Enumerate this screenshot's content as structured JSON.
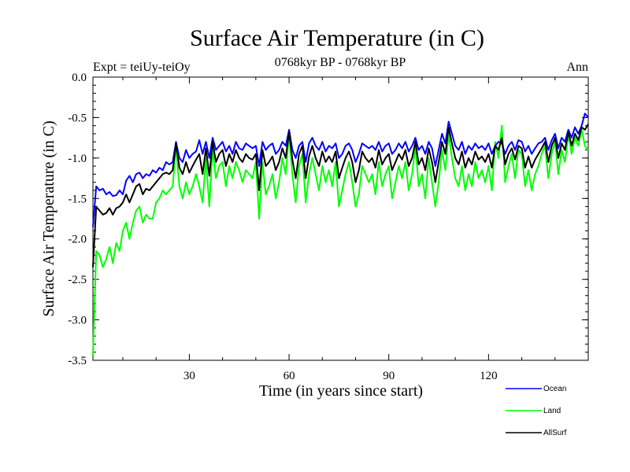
{
  "chart_data": {
    "type": "line",
    "title": "Surface Air Temperature (in C)",
    "subtitle_left": "Expt = teiUy-teiOy",
    "subtitle_center": "0768kyr BP - 0768kyr BP",
    "subtitle_right": "Ann",
    "xlabel": "Time (in years since start)",
    "ylabel": "Surface Air Temperature (in C)",
    "xlim": [
      1,
      150
    ],
    "ylim": [
      -3.5,
      0.0
    ],
    "xticks": [
      30,
      60,
      90,
      120
    ],
    "yticks": [
      0.0,
      -0.5,
      -1.0,
      -1.5,
      -2.0,
      -2.5,
      -3.0,
      -3.5
    ],
    "ytick_labels": [
      "0.0",
      "-0.5",
      "-1.0",
      "-1.5",
      "-2.0",
      "-2.5",
      "-3.0",
      "-3.5"
    ],
    "x": [
      1,
      2,
      3,
      4,
      5,
      6,
      7,
      8,
      9,
      10,
      11,
      12,
      13,
      14,
      15,
      16,
      17,
      18,
      19,
      20,
      21,
      22,
      23,
      24,
      25,
      26,
      27,
      28,
      29,
      30,
      31,
      32,
      33,
      34,
      35,
      36,
      37,
      38,
      39,
      40,
      41,
      42,
      43,
      44,
      45,
      46,
      47,
      48,
      49,
      50,
      51,
      52,
      53,
      54,
      55,
      56,
      57,
      58,
      59,
      60,
      61,
      62,
      63,
      64,
      65,
      66,
      67,
      68,
      69,
      70,
      71,
      72,
      73,
      74,
      75,
      76,
      77,
      78,
      79,
      80,
      81,
      82,
      83,
      84,
      85,
      86,
      87,
      88,
      89,
      90,
      91,
      92,
      93,
      94,
      95,
      96,
      97,
      98,
      99,
      100,
      101,
      102,
      103,
      104,
      105,
      106,
      107,
      108,
      109,
      110,
      111,
      112,
      113,
      114,
      115,
      116,
      117,
      118,
      119,
      120,
      121,
      122,
      123,
      124,
      125,
      126,
      127,
      128,
      129,
      130,
      131,
      132,
      133,
      134,
      135,
      136,
      137,
      138,
      139,
      140,
      141,
      142,
      143,
      144,
      145,
      146,
      147,
      148,
      149,
      150
    ],
    "series": [
      {
        "name": "Ocean",
        "color": "#0000ff",
        "values": [
          -1.85,
          -1.35,
          -1.4,
          -1.38,
          -1.45,
          -1.42,
          -1.47,
          -1.46,
          -1.4,
          -1.45,
          -1.28,
          -1.22,
          -1.3,
          -1.2,
          -1.18,
          -1.25,
          -1.2,
          -1.22,
          -1.15,
          -1.18,
          -1.12,
          -1.15,
          -1.05,
          -1.08,
          -1.05,
          -0.8,
          -1.0,
          -1.05,
          -0.9,
          -1.0,
          -0.95,
          -0.92,
          -0.78,
          -0.95,
          -0.8,
          -1.0,
          -0.75,
          -0.9,
          -0.85,
          -0.8,
          -0.92,
          -0.85,
          -0.95,
          -0.8,
          -0.88,
          -0.9,
          -0.82,
          -0.85,
          -0.88,
          -0.85,
          -1.1,
          -0.8,
          -0.9,
          -0.85,
          -0.82,
          -0.95,
          -0.9,
          -0.8,
          -0.85,
          -0.65,
          -0.9,
          -1.0,
          -0.85,
          -0.8,
          -1.05,
          -0.82,
          -0.75,
          -0.85,
          -0.9,
          -0.8,
          -0.92,
          -0.85,
          -0.88,
          -0.82,
          -1.0,
          -0.95,
          -0.85,
          -0.82,
          -0.9,
          -1.05,
          -0.95,
          -0.82,
          -0.85,
          -0.88,
          -0.85,
          -0.9,
          -0.8,
          -0.92,
          -0.85,
          -0.82,
          -0.95,
          -0.9,
          -0.82,
          -0.88,
          -0.8,
          -0.92,
          -0.85,
          -0.75,
          -0.9,
          -0.85,
          -0.95,
          -0.8,
          -0.88,
          -1.1,
          -0.9,
          -0.7,
          -0.82,
          -0.55,
          -0.7,
          -0.85,
          -0.9,
          -0.8,
          -0.95,
          -0.85,
          -0.9,
          -0.82,
          -0.88,
          -0.85,
          -0.9,
          -0.82,
          -0.95,
          -0.85,
          -0.8,
          -0.82,
          -0.95,
          -0.85,
          -0.8,
          -0.9,
          -0.78,
          -0.8,
          -0.92,
          -0.85,
          -0.95,
          -0.88,
          -0.82,
          -0.8,
          -0.75,
          -0.9,
          -0.78,
          -0.7,
          -0.88,
          -0.75,
          -0.8,
          -0.65,
          -0.75,
          -0.62,
          -0.7,
          -0.6,
          -0.45,
          -0.5
        ]
      },
      {
        "name": "Land",
        "color": "#00ff00",
        "values": [
          -3.45,
          -2.15,
          -2.2,
          -2.35,
          -2.25,
          -2.1,
          -2.3,
          -2.05,
          -2.15,
          -1.9,
          -1.8,
          -2.0,
          -1.8,
          -1.65,
          -1.6,
          -1.8,
          -1.7,
          -1.75,
          -1.75,
          -1.55,
          -1.5,
          -1.4,
          -1.45,
          -1.4,
          -1.35,
          -0.85,
          -1.35,
          -1.5,
          -1.3,
          -1.45,
          -1.35,
          -1.2,
          -1.35,
          -1.55,
          -1.0,
          -1.6,
          -0.9,
          -1.25,
          -1.1,
          -1.05,
          -1.35,
          -1.1,
          -1.25,
          -1.05,
          -1.15,
          -1.3,
          -1.15,
          -1.2,
          -1.25,
          -1.05,
          -1.75,
          -1.05,
          -1.45,
          -1.35,
          -1.2,
          -1.5,
          -1.3,
          -1.0,
          -1.2,
          -0.7,
          -1.2,
          -1.55,
          -1.1,
          -0.95,
          -1.55,
          -1.2,
          -1.0,
          -1.2,
          -1.4,
          -1.1,
          -1.3,
          -1.15,
          -1.35,
          -1.05,
          -1.6,
          -1.4,
          -1.2,
          -1.05,
          -1.3,
          -1.6,
          -1.45,
          -1.1,
          -1.2,
          -1.3,
          -1.2,
          -1.45,
          -1.05,
          -1.35,
          -1.2,
          -1.1,
          -1.5,
          -1.3,
          -1.1,
          -1.25,
          -1.05,
          -1.4,
          -1.2,
          -0.85,
          -1.35,
          -1.2,
          -1.5,
          -1.0,
          -1.3,
          -1.6,
          -1.3,
          -0.9,
          -1.15,
          -0.7,
          -1.0,
          -1.25,
          -1.35,
          -1.1,
          -1.4,
          -1.2,
          -1.35,
          -1.05,
          -1.25,
          -1.15,
          -1.3,
          -1.1,
          -1.4,
          -0.8,
          -1.0,
          -0.6,
          -1.3,
          -1.1,
          -0.95,
          -1.25,
          -0.9,
          -0.95,
          -1.35,
          -1.15,
          -1.4,
          -1.2,
          -1.1,
          -0.95,
          -0.85,
          -1.25,
          -0.95,
          -0.8,
          -1.2,
          -0.9,
          -1.05,
          -0.7,
          -0.95,
          -0.75,
          -0.85,
          -0.65,
          -0.85,
          -0.9
        ]
      },
      {
        "name": "AllSurf",
        "color": "#000000",
        "values": [
          -2.35,
          -1.6,
          -1.65,
          -1.7,
          -1.68,
          -1.62,
          -1.7,
          -1.62,
          -1.6,
          -1.55,
          -1.45,
          -1.55,
          -1.45,
          -1.35,
          -1.32,
          -1.45,
          -1.38,
          -1.4,
          -1.35,
          -1.3,
          -1.25,
          -1.2,
          -1.18,
          -1.2,
          -1.15,
          -0.82,
          -1.12,
          -1.2,
          -1.05,
          -1.18,
          -1.1,
          -1.02,
          -0.95,
          -1.2,
          -0.88,
          -1.22,
          -0.8,
          -1.05,
          -0.95,
          -0.9,
          -1.1,
          -0.95,
          -1.05,
          -0.9,
          -1.0,
          -1.05,
          -0.95,
          -1.0,
          -1.02,
          -0.95,
          -1.4,
          -0.9,
          -1.1,
          -1.05,
          -0.98,
          -1.15,
          -1.05,
          -0.88,
          -1.0,
          -0.68,
          -1.02,
          -1.25,
          -0.95,
          -0.85,
          -1.25,
          -0.98,
          -0.85,
          -1.0,
          -1.1,
          -0.92,
          -1.05,
          -0.98,
          -1.05,
          -0.92,
          -1.25,
          -1.12,
          -1.0,
          -0.92,
          -1.05,
          -1.3,
          -1.15,
          -0.92,
          -1.0,
          -1.05,
          -1.0,
          -1.12,
          -0.9,
          -1.08,
          -1.0,
          -0.95,
          -1.15,
          -1.05,
          -0.95,
          -1.02,
          -0.9,
          -1.1,
          -1.0,
          -0.8,
          -1.08,
          -1.0,
          -1.15,
          -0.88,
          -1.05,
          -1.3,
          -1.05,
          -0.8,
          -0.95,
          -0.62,
          -0.82,
          -1.0,
          -1.08,
          -0.92,
          -1.12,
          -1.0,
          -1.08,
          -0.92,
          -1.02,
          -0.98,
          -1.05,
          -0.95,
          -1.12,
          -0.85,
          -0.9,
          -0.75,
          -1.08,
          -0.95,
          -0.88,
          -1.02,
          -0.85,
          -0.88,
          -1.12,
          -0.98,
          -1.12,
          -1.02,
          -0.95,
          -0.88,
          -0.8,
          -1.05,
          -0.85,
          -0.75,
          -1.0,
          -0.82,
          -0.9,
          -0.68,
          -0.85,
          -0.7,
          -0.78,
          -0.62,
          -0.65,
          -0.58
        ]
      }
    ],
    "legend_position": "bottom-right"
  }
}
